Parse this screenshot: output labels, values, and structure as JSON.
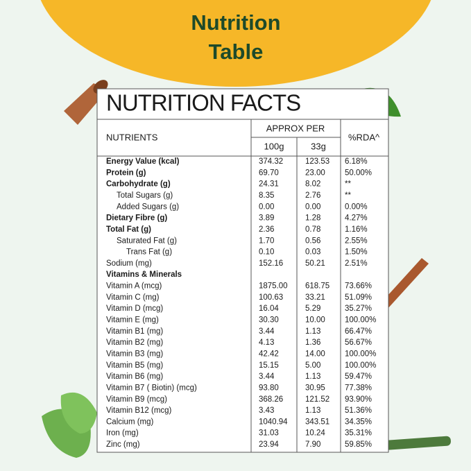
{
  "header": {
    "title_lines": [
      "Nutrition",
      "Table"
    ]
  },
  "table": {
    "title": "NUTRITION FACTS",
    "columns": {
      "nutrients": "NUTRIENTS",
      "approx_per": "APPROX PER",
      "per_100g": "100g",
      "per_33g": "33g",
      "rda": "%RDA^"
    },
    "rows": [
      {
        "cells": [
          "Energy Value (kcal)",
          "374.32",
          "123.53",
          "6.18%"
        ],
        "style": "bold"
      },
      {
        "cells": [
          "Protein (g)",
          "69.70",
          "23.00",
          "50.00%"
        ],
        "style": "bold"
      },
      {
        "cells": [
          "Carbohydrate (g)",
          "24.31",
          "8.02",
          "**"
        ],
        "style": "bold"
      },
      {
        "cells": [
          "Total Sugars (g)",
          "8.35",
          "2.76",
          "**"
        ],
        "style": "sub"
      },
      {
        "cells": [
          "Added Sugars (g)",
          "0.00",
          "0.00",
          "0.00%"
        ],
        "style": "sub"
      },
      {
        "cells": [
          "Dietary Fibre (g)",
          "3.89",
          "1.28",
          "4.27%"
        ],
        "style": "bold"
      },
      {
        "cells": [
          "Total Fat (g)",
          "2.36",
          "0.78",
          "1.16%"
        ],
        "style": "bold"
      },
      {
        "cells": [
          "Saturated Fat (g)",
          "1.70",
          "0.56",
          "2.55%"
        ],
        "style": "sub"
      },
      {
        "cells": [
          "Trans Fat (g)",
          "0.10",
          "0.03",
          "1.50%"
        ],
        "style": "subsub"
      },
      {
        "cells": [
          "Sodium (mg)",
          "152.16",
          "50.21",
          "2.51%"
        ],
        "style": "plain"
      },
      {
        "cells": [
          "Vitamins & Minerals"
        ],
        "style": "bold"
      },
      {
        "cells": [
          "Vitamin A (mcg)",
          "1875.00",
          "618.75",
          "73.66%"
        ],
        "style": "plain"
      },
      {
        "cells": [
          "Vitamin C (mg)",
          "100.63",
          "33.21",
          "51.09%"
        ],
        "style": "plain"
      },
      {
        "cells": [
          "Vitamin D (mcg)",
          "16.04",
          "5.29",
          "35.27%"
        ],
        "style": "plain"
      },
      {
        "cells": [
          "Vitamin E (mg)",
          "30.30",
          "10.00",
          "100.00%"
        ],
        "style": "plain"
      },
      {
        "cells": [
          "Vitamin B1 (mg)",
          "3.44",
          "1.13",
          "66.47%"
        ],
        "style": "plain"
      },
      {
        "cells": [
          "Vitamin B2 (mg)",
          "4.13",
          "1.36",
          "56.67%"
        ],
        "style": "plain"
      },
      {
        "cells": [
          "Vitamin B3 (mg)",
          "42.42",
          "14.00",
          "100.00%"
        ],
        "style": "plain"
      },
      {
        "cells": [
          "Vitamin B5 (mg)",
          "15.15",
          "5.00",
          "100.00%"
        ],
        "style": "plain"
      },
      {
        "cells": [
          "Vitamin B6 (mg)",
          "3.44",
          "1.13",
          "59.47%"
        ],
        "style": "plain"
      },
      {
        "cells": [
          "Vitamin B7 ( Biotin) (mcg)",
          "93.80",
          "30.95",
          "77.38%"
        ],
        "style": "plain"
      },
      {
        "cells": [
          "Vitamin B9 (mcg)",
          "368.26",
          "121.52",
          "93.90%"
        ],
        "style": "plain"
      },
      {
        "cells": [
          "Vitamin B12 (mcg)",
          "3.43",
          "1.13",
          "51.36%"
        ],
        "style": "plain"
      },
      {
        "cells": [
          "Calcium (mg)",
          "1040.94",
          "343.51",
          "34.35%"
        ],
        "style": "plain"
      },
      {
        "cells": [
          "Iron (mg)",
          "31.03",
          "10.24",
          "35.31%"
        ],
        "style": "plain"
      },
      {
        "cells": [
          "Zinc (mg)",
          "23.94",
          "7.90",
          "59.85%"
        ],
        "style": "plain"
      }
    ]
  }
}
